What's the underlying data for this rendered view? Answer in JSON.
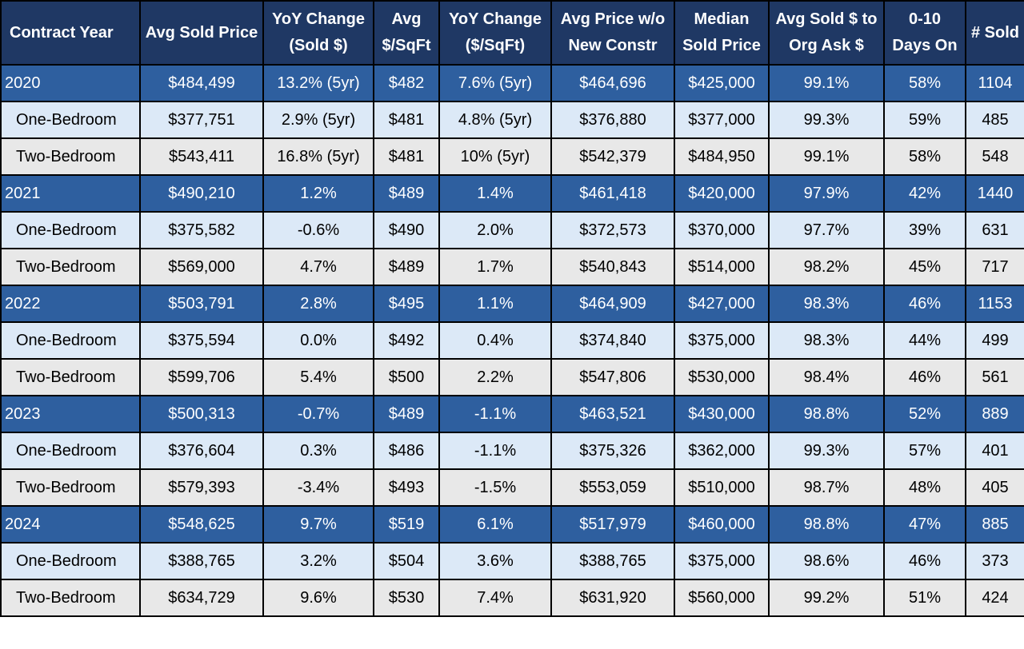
{
  "headers": [
    "Contract Year",
    "Avg Sold Price",
    "YoY Change (Sold $)",
    "Avg $/SqFt",
    "YoY Change ($/SqFt)",
    "Avg Price w/o New Constr",
    "Median Sold Price",
    "Avg Sold $ to Org Ask $",
    "0-10 Days On",
    "# Sold"
  ],
  "rows": [
    {
      "kind": "year",
      "cells": [
        "2020",
        "$484,499",
        "13.2% (5yr)",
        "$482",
        "7.6% (5yr)",
        "$464,696",
        "$425,000",
        "99.1%",
        "58%",
        "1104"
      ]
    },
    {
      "kind": "one",
      "cells": [
        "One-Bedroom",
        "$377,751",
        "2.9% (5yr)",
        "$481",
        "4.8% (5yr)",
        "$376,880",
        "$377,000",
        "99.3%",
        "59%",
        "485"
      ]
    },
    {
      "kind": "two",
      "cells": [
        "Two-Bedroom",
        "$543,411",
        "16.8% (5yr)",
        "$481",
        "10% (5yr)",
        "$542,379",
        "$484,950",
        "99.1%",
        "58%",
        "548"
      ]
    },
    {
      "kind": "year",
      "cells": [
        "2021",
        "$490,210",
        "1.2%",
        "$489",
        "1.4%",
        "$461,418",
        "$420,000",
        "97.9%",
        "42%",
        "1440"
      ]
    },
    {
      "kind": "one",
      "cells": [
        "One-Bedroom",
        "$375,582",
        "-0.6%",
        "$490",
        "2.0%",
        "$372,573",
        "$370,000",
        "97.7%",
        "39%",
        "631"
      ]
    },
    {
      "kind": "two",
      "cells": [
        "Two-Bedroom",
        "$569,000",
        "4.7%",
        "$489",
        "1.7%",
        "$540,843",
        "$514,000",
        "98.2%",
        "45%",
        "717"
      ]
    },
    {
      "kind": "year",
      "cells": [
        "2022",
        "$503,791",
        "2.8%",
        "$495",
        "1.1%",
        "$464,909",
        "$427,000",
        "98.3%",
        "46%",
        "1153"
      ]
    },
    {
      "kind": "one",
      "cells": [
        "One-Bedroom",
        "$375,594",
        "0.0%",
        "$492",
        "0.4%",
        "$374,840",
        "$375,000",
        "98.3%",
        "44%",
        "499"
      ]
    },
    {
      "kind": "two",
      "cells": [
        "Two-Bedroom",
        "$599,706",
        "5.4%",
        "$500",
        "2.2%",
        "$547,806",
        "$530,000",
        "98.4%",
        "46%",
        "561"
      ]
    },
    {
      "kind": "year",
      "cells": [
        "2023",
        "$500,313",
        "-0.7%",
        "$489",
        "-1.1%",
        "$463,521",
        "$430,000",
        "98.8%",
        "52%",
        "889"
      ]
    },
    {
      "kind": "one",
      "cells": [
        "One-Bedroom",
        "$376,604",
        "0.3%",
        "$486",
        "-1.1%",
        "$375,326",
        "$362,000",
        "99.3%",
        "57%",
        "401"
      ]
    },
    {
      "kind": "two",
      "cells": [
        "Two-Bedroom",
        "$579,393",
        "-3.4%",
        "$493",
        "-1.5%",
        "$553,059",
        "$510,000",
        "98.7%",
        "48%",
        "405"
      ]
    },
    {
      "kind": "year",
      "cells": [
        "2024",
        "$548,625",
        "9.7%",
        "$519",
        "6.1%",
        "$517,979",
        "$460,000",
        "98.8%",
        "47%",
        "885"
      ]
    },
    {
      "kind": "one",
      "cells": [
        "One-Bedroom",
        "$388,765",
        "3.2%",
        "$504",
        "3.6%",
        "$388,765",
        "$375,000",
        "98.6%",
        "46%",
        "373"
      ]
    },
    {
      "kind": "two",
      "cells": [
        "Two-Bedroom",
        "$634,729",
        "9.6%",
        "$530",
        "7.4%",
        "$631,920",
        "$560,000",
        "99.2%",
        "51%",
        "424"
      ]
    }
  ],
  "colors": {
    "header_bg": "#1f3864",
    "year_row_bg": "#2e5f9f",
    "one_bedroom_bg": "#dce9f7",
    "two_bedroom_bg": "#e8e8e8",
    "border": "#000000"
  }
}
